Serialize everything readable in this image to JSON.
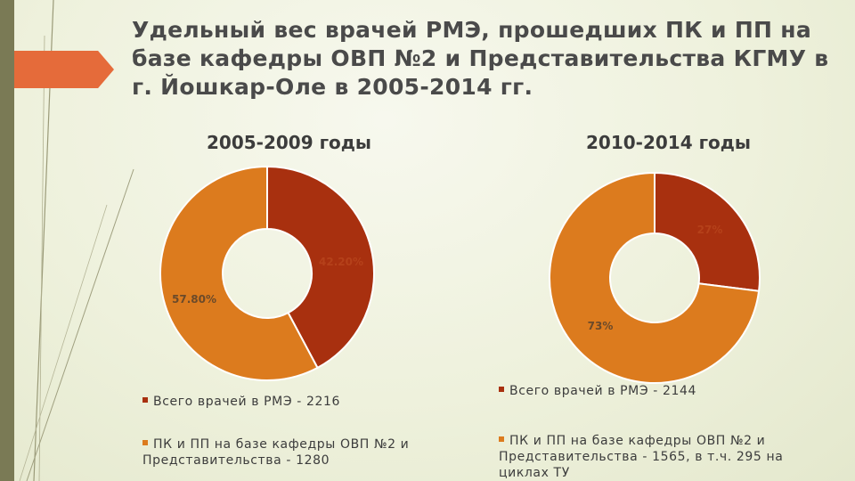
{
  "title": "Удельный вес врачей РМЭ, прошедших ПК и ПП на базе кафедры ОВП №2 и Представительства КГМУ в г. Йошкар-Оле в 2005-2014 гг.",
  "colors": {
    "series1": "#a8300f",
    "series2": "#dc7b1e",
    "accent": "#e56b3a",
    "sidebar": "#7a7a55"
  },
  "chart_data": [
    {
      "type": "pie",
      "variant": "donut",
      "title": "2005-2009 годы",
      "series": [
        {
          "name": "Всего врачей в РМЭ - 2216",
          "value": 42.2,
          "label": "42.20%",
          "color": "#a8300f"
        },
        {
          "name": "ПК и ПП на базе кафедры ОВП №2 и Представительства - 1280",
          "value": 57.8,
          "label": "57.80%",
          "color": "#dc7b1e"
        }
      ],
      "legend": "bottom"
    },
    {
      "type": "pie",
      "variant": "donut",
      "title": "2010-2014 годы",
      "series": [
        {
          "name": "Всего врачей в РМЭ - 2144",
          "value": 27,
          "label": "27%",
          "color": "#a8300f"
        },
        {
          "name": "ПК и ПП на базе кафедры ОВП №2 и Представительства - 1565, в т.ч. 295 на циклах ТУ",
          "value": 73,
          "label": "73%",
          "color": "#dc7b1e"
        }
      ],
      "legend": "bottom"
    }
  ]
}
